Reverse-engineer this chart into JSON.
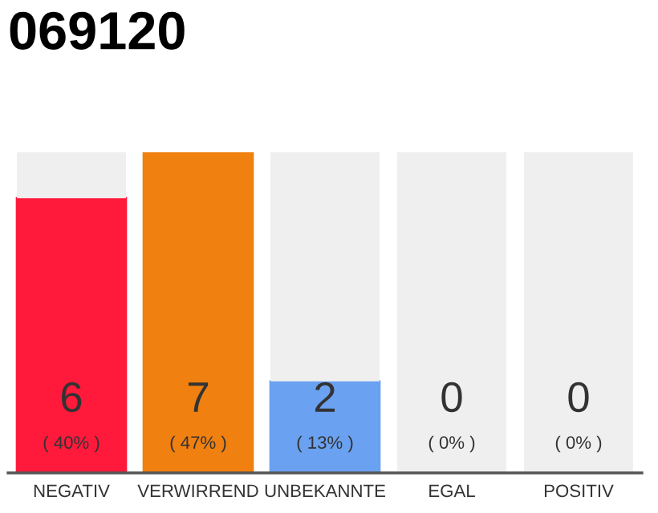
{
  "chart_data": {
    "type": "bar",
    "title": "069120",
    "stacked": true,
    "categories": [
      "NEGATIV",
      "VERWIRREND",
      "UNBEKANNTE",
      "EGAL",
      "POSITIV"
    ],
    "series": [
      {
        "colors": [
          "#ff1a3c",
          "#f0800f",
          "#6aa1f0",
          "#555555",
          "#555555"
        ],
        "values": [
          6,
          7,
          2,
          0,
          0
        ],
        "value_labels": [
          "6\n( 40% )",
          "7\n( 47% )",
          "2\n( 13% )",
          "0\n( 0% )",
          "0\n( 0% )"
        ]
      },
      {
        "color": "#efefef",
        "values": [
          1,
          0,
          5,
          7,
          7
        ]
      }
    ],
    "ylim": [
      0,
      7
    ],
    "tick_labels": "x",
    "legend": false
  }
}
